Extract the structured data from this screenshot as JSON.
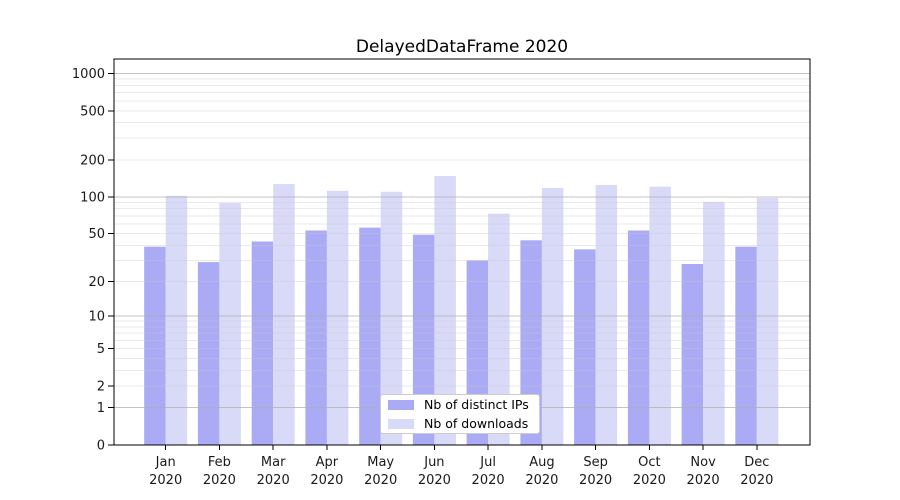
{
  "title": "DelayedDataFrame 2020",
  "legend": {
    "items": [
      {
        "label": "Nb of distinct IPs",
        "color": "#aaaaf5"
      },
      {
        "label": "Nb of downloads",
        "color": "#d9d9f8"
      }
    ],
    "position": "lower center"
  },
  "colors": {
    "bar_ips": "#aaaaf5",
    "bar_downloads": "#d9d9f8",
    "major_grid": "#b0b0b0",
    "minor_grid": "#c9c9cf",
    "axis": "#000000",
    "tick_label": "#1a1a1a",
    "legend_border": "#cccccc",
    "background": "#ffffff"
  },
  "chart_data": {
    "type": "bar",
    "title": "DelayedDataFrame 2020",
    "categories": [
      "Jan 2020",
      "Feb 2020",
      "Mar 2020",
      "Apr 2020",
      "May 2020",
      "Jun 2020",
      "Jul 2020",
      "Aug 2020",
      "Sep 2020",
      "Oct 2020",
      "Nov 2020",
      "Dec 2020"
    ],
    "series": [
      {
        "name": "Nb of distinct IPs",
        "color": "#aaaaf5",
        "values": [
          39,
          29,
          43,
          53,
          56,
          49,
          30,
          44,
          37,
          53,
          28,
          39
        ]
      },
      {
        "name": "Nb of downloads",
        "color": "#d9d9f8",
        "values": [
          102,
          89,
          127,
          112,
          110,
          148,
          73,
          118,
          125,
          121,
          91,
          98
        ]
      }
    ],
    "xlabel": "",
    "ylabel": "",
    "yscale": "log10(value+1)",
    "ylim": [
      0,
      1300
    ],
    "yticks": [
      0,
      1,
      2,
      5,
      10,
      20,
      50,
      100,
      200,
      500,
      1000
    ],
    "major_gridline_values": [
      1,
      10,
      100,
      1000
    ],
    "minor_gridline_values": [
      2,
      3,
      4,
      5,
      6,
      7,
      8,
      9,
      20,
      30,
      40,
      50,
      60,
      70,
      80,
      90,
      200,
      300,
      400,
      500,
      600,
      700,
      800,
      900
    ],
    "grid": true,
    "legend_position": "lower center"
  }
}
